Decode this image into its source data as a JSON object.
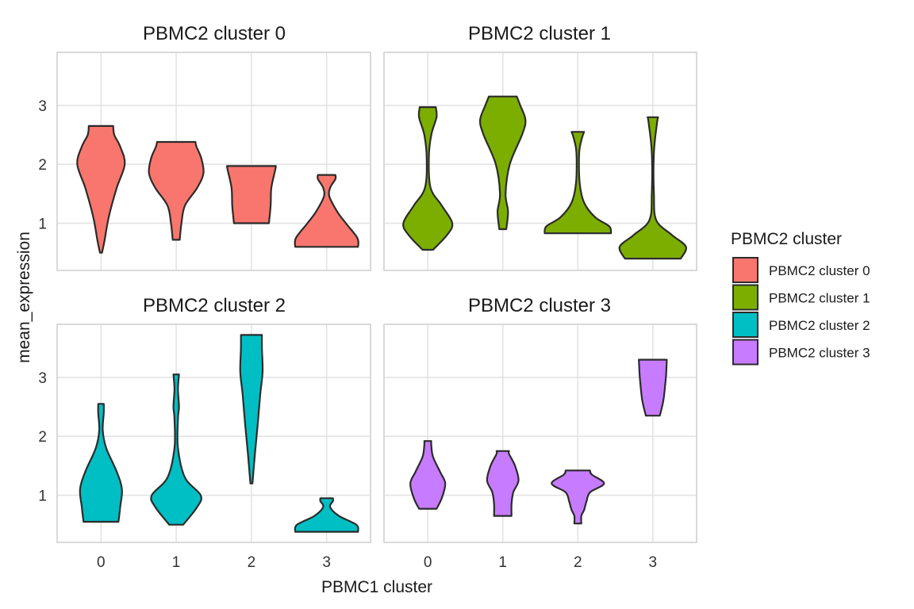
{
  "chart_data": {
    "type": "violin",
    "facet_titles": [
      "PBMC2 cluster 0",
      "PBMC2 cluster 1",
      "PBMC2 cluster 2",
      "PBMC2 cluster 3"
    ],
    "xlabel": "PBMC1 cluster",
    "ylabel": "mean_expression",
    "categories": [
      "0",
      "1",
      "2",
      "3"
    ],
    "yticks": [
      1,
      2,
      3
    ],
    "ylim": [
      0.2,
      3.9
    ],
    "grid": true,
    "legend": {
      "title": "PBMC2 cluster",
      "position": "right",
      "entries": [
        "PBMC2 cluster 0",
        "PBMC2 cluster 1",
        "PBMC2 cluster 2",
        "PBMC2 cluster 3"
      ]
    },
    "colors": [
      "#F8766D",
      "#7CAE00",
      "#00BFC4",
      "#C77CFF"
    ],
    "panels": [
      {
        "title": "PBMC2 cluster 0",
        "violins": [
          {
            "x": "0",
            "min": 0.5,
            "max": 2.65,
            "profile": [
              [
                0.5,
                0.03
              ],
              [
                0.7,
                0.1
              ],
              [
                1.1,
                0.22
              ],
              [
                1.6,
                0.45
              ],
              [
                2.0,
                0.68
              ],
              [
                2.3,
                0.55
              ],
              [
                2.5,
                0.38
              ],
              [
                2.65,
                0.35
              ]
            ]
          },
          {
            "x": "1",
            "min": 0.72,
            "max": 2.38,
            "profile": [
              [
                0.72,
                0.1
              ],
              [
                1.0,
                0.15
              ],
              [
                1.3,
                0.25
              ],
              [
                1.6,
                0.6
              ],
              [
                1.85,
                0.78
              ],
              [
                2.1,
                0.72
              ],
              [
                2.3,
                0.58
              ],
              [
                2.38,
                0.55
              ]
            ]
          },
          {
            "x": "2",
            "min": 1.0,
            "max": 1.97,
            "profile": [
              [
                1.0,
                0.5
              ],
              [
                1.3,
                0.55
              ],
              [
                1.6,
                0.57
              ],
              [
                1.9,
                0.68
              ],
              [
                1.97,
                0.7
              ]
            ]
          },
          {
            "x": "3",
            "min": 0.6,
            "max": 1.82,
            "profile": [
              [
                0.6,
                0.9
              ],
              [
                0.75,
                0.88
              ],
              [
                1.0,
                0.55
              ],
              [
                1.2,
                0.3
              ],
              [
                1.45,
                0.08
              ],
              [
                1.6,
                0.1
              ],
              [
                1.75,
                0.25
              ],
              [
                1.82,
                0.25
              ]
            ]
          }
        ]
      },
      {
        "title": "PBMC2 cluster 1",
        "violins": [
          {
            "x": "0",
            "min": 0.55,
            "max": 2.97,
            "profile": [
              [
                0.55,
                0.15
              ],
              [
                0.8,
                0.55
              ],
              [
                1.0,
                0.7
              ],
              [
                1.3,
                0.4
              ],
              [
                1.6,
                0.08
              ],
              [
                2.1,
                0.03
              ],
              [
                2.5,
                0.1
              ],
              [
                2.8,
                0.25
              ],
              [
                2.97,
                0.23
              ]
            ]
          },
          {
            "x": "1",
            "min": 0.9,
            "max": 3.15,
            "profile": [
              [
                0.9,
                0.1
              ],
              [
                1.2,
                0.15
              ],
              [
                1.5,
                0.08
              ],
              [
                2.0,
                0.2
              ],
              [
                2.5,
                0.55
              ],
              [
                2.75,
                0.65
              ],
              [
                3.0,
                0.5
              ],
              [
                3.15,
                0.4
              ]
            ]
          },
          {
            "x": "2",
            "min": 0.83,
            "max": 2.55,
            "profile": [
              [
                0.83,
                0.95
              ],
              [
                0.95,
                0.9
              ],
              [
                1.1,
                0.5
              ],
              [
                1.35,
                0.18
              ],
              [
                1.7,
                0.05
              ],
              [
                2.2,
                0.04
              ],
              [
                2.45,
                0.12
              ],
              [
                2.55,
                0.18
              ]
            ]
          },
          {
            "x": "3",
            "min": 0.4,
            "max": 2.8,
            "profile": [
              [
                0.4,
                0.8
              ],
              [
                0.6,
                0.95
              ],
              [
                0.8,
                0.55
              ],
              [
                1.05,
                0.1
              ],
              [
                1.5,
                0.03
              ],
              [
                2.2,
                0.03
              ],
              [
                2.7,
                0.12
              ],
              [
                2.8,
                0.15
              ]
            ]
          }
        ]
      },
      {
        "title": "PBMC2 cluster 2",
        "violins": [
          {
            "x": "0",
            "min": 0.55,
            "max": 2.55,
            "profile": [
              [
                0.55,
                0.5
              ],
              [
                0.8,
                0.55
              ],
              [
                1.1,
                0.6
              ],
              [
                1.4,
                0.45
              ],
              [
                1.8,
                0.15
              ],
              [
                2.1,
                0.05
              ],
              [
                2.4,
                0.08
              ],
              [
                2.55,
                0.08
              ]
            ]
          },
          {
            "x": "1",
            "min": 0.5,
            "max": 3.05,
            "profile": [
              [
                0.5,
                0.2
              ],
              [
                0.8,
                0.6
              ],
              [
                1.0,
                0.7
              ],
              [
                1.3,
                0.25
              ],
              [
                1.8,
                0.05
              ],
              [
                2.3,
                0.05
              ],
              [
                2.5,
                0.08
              ],
              [
                2.8,
                0.05
              ],
              [
                3.05,
                0.08
              ]
            ]
          },
          {
            "x": "2",
            "min": 1.2,
            "max": 3.72,
            "profile": [
              [
                1.2,
                0.03
              ],
              [
                1.7,
                0.1
              ],
              [
                2.2,
                0.18
              ],
              [
                2.7,
                0.25
              ],
              [
                3.1,
                0.32
              ],
              [
                3.5,
                0.3
              ],
              [
                3.72,
                0.3
              ]
            ]
          },
          {
            "x": "3",
            "min": 0.38,
            "max": 0.95,
            "profile": [
              [
                0.38,
                0.9
              ],
              [
                0.5,
                0.85
              ],
              [
                0.65,
                0.35
              ],
              [
                0.8,
                0.1
              ],
              [
                0.9,
                0.18
              ],
              [
                0.95,
                0.18
              ]
            ]
          }
        ]
      },
      {
        "title": "PBMC2 cluster 3",
        "violins": [
          {
            "x": "0",
            "min": 0.77,
            "max": 1.92,
            "profile": [
              [
                0.77,
                0.25
              ],
              [
                0.95,
                0.4
              ],
              [
                1.2,
                0.5
              ],
              [
                1.4,
                0.35
              ],
              [
                1.65,
                0.15
              ],
              [
                1.85,
                0.1
              ],
              [
                1.92,
                0.1
              ]
            ]
          },
          {
            "x": "1",
            "min": 0.65,
            "max": 1.75,
            "profile": [
              [
                0.65,
                0.25
              ],
              [
                0.85,
                0.25
              ],
              [
                1.05,
                0.3
              ],
              [
                1.25,
                0.45
              ],
              [
                1.5,
                0.35
              ],
              [
                1.7,
                0.18
              ],
              [
                1.75,
                0.18
              ]
            ]
          },
          {
            "x": "2",
            "min": 0.52,
            "max": 1.42,
            "profile": [
              [
                0.52,
                0.1
              ],
              [
                0.65,
                0.1
              ],
              [
                0.75,
                0.18
              ],
              [
                0.9,
                0.25
              ],
              [
                1.05,
                0.35
              ],
              [
                1.2,
                0.75
              ],
              [
                1.35,
                0.4
              ],
              [
                1.42,
                0.35
              ]
            ]
          },
          {
            "x": "3",
            "min": 2.35,
            "max": 3.3,
            "profile": [
              [
                2.35,
                0.2
              ],
              [
                2.6,
                0.3
              ],
              [
                2.85,
                0.35
              ],
              [
                3.05,
                0.38
              ],
              [
                3.3,
                0.4
              ]
            ]
          }
        ]
      }
    ]
  }
}
